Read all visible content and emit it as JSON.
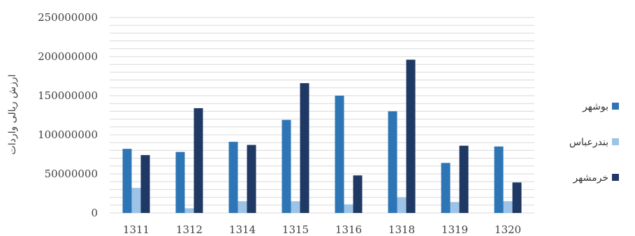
{
  "chart_data": {
    "type": "bar",
    "title": "",
    "xlabel": "",
    "ylabel": "ارزش ریالی واردات",
    "ylim": [
      0,
      250000000
    ],
    "yticks": [
      0,
      50000000,
      100000000,
      150000000,
      200000000,
      250000000
    ],
    "ytick_labels": [
      "0",
      "50000000",
      "100000000",
      "150000000",
      "200000000",
      "250000000"
    ],
    "categories": [
      "1311",
      "1312",
      "1314",
      "1315",
      "1316",
      "1318",
      "1319",
      "1320"
    ],
    "grid": true,
    "legend_position": "right",
    "series": [
      {
        "name": "بوشهر",
        "color": "#2e75b6",
        "values": [
          82000000,
          78000000,
          91000000,
          119000000,
          150000000,
          130000000,
          64000000,
          85000000
        ]
      },
      {
        "name": "بندرعباس",
        "color": "#9dc3e6",
        "values": [
          32000000,
          6000000,
          15000000,
          15000000,
          11000000,
          20000000,
          14000000,
          15000000
        ]
      },
      {
        "name": "خرمشهر",
        "color": "#1f3864",
        "values": [
          74000000,
          134000000,
          87000000,
          166000000,
          48000000,
          196000000,
          86000000,
          39000000
        ]
      }
    ]
  }
}
